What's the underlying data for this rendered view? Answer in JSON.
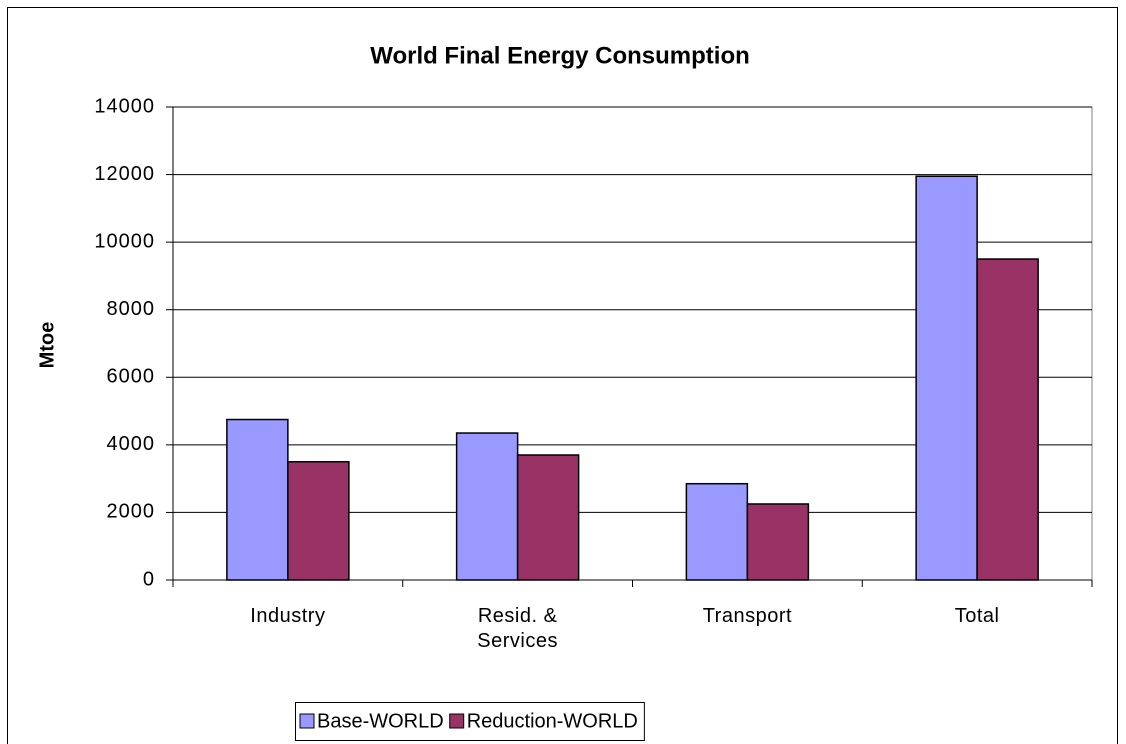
{
  "chart_data": {
    "type": "bar",
    "title": "World Final Energy Consumption",
    "y_label": "Mtoe",
    "categories": [
      "Industry",
      "Resid. & Services",
      "Transport",
      "Total"
    ],
    "series": [
      {
        "name": "Base-WORLD",
        "color": "#9999ff",
        "values": [
          4750,
          4350,
          2850,
          11950
        ]
      },
      {
        "name": "Reduction-WORLD",
        "color": "#993366",
        "values": [
          3500,
          3700,
          2250,
          9500
        ]
      }
    ],
    "ylim": [
      0,
      14000
    ],
    "yticks": [
      0,
      2000,
      4000,
      6000,
      8000,
      10000,
      12000,
      14000
    ],
    "grid": true,
    "legend": "bottom"
  }
}
